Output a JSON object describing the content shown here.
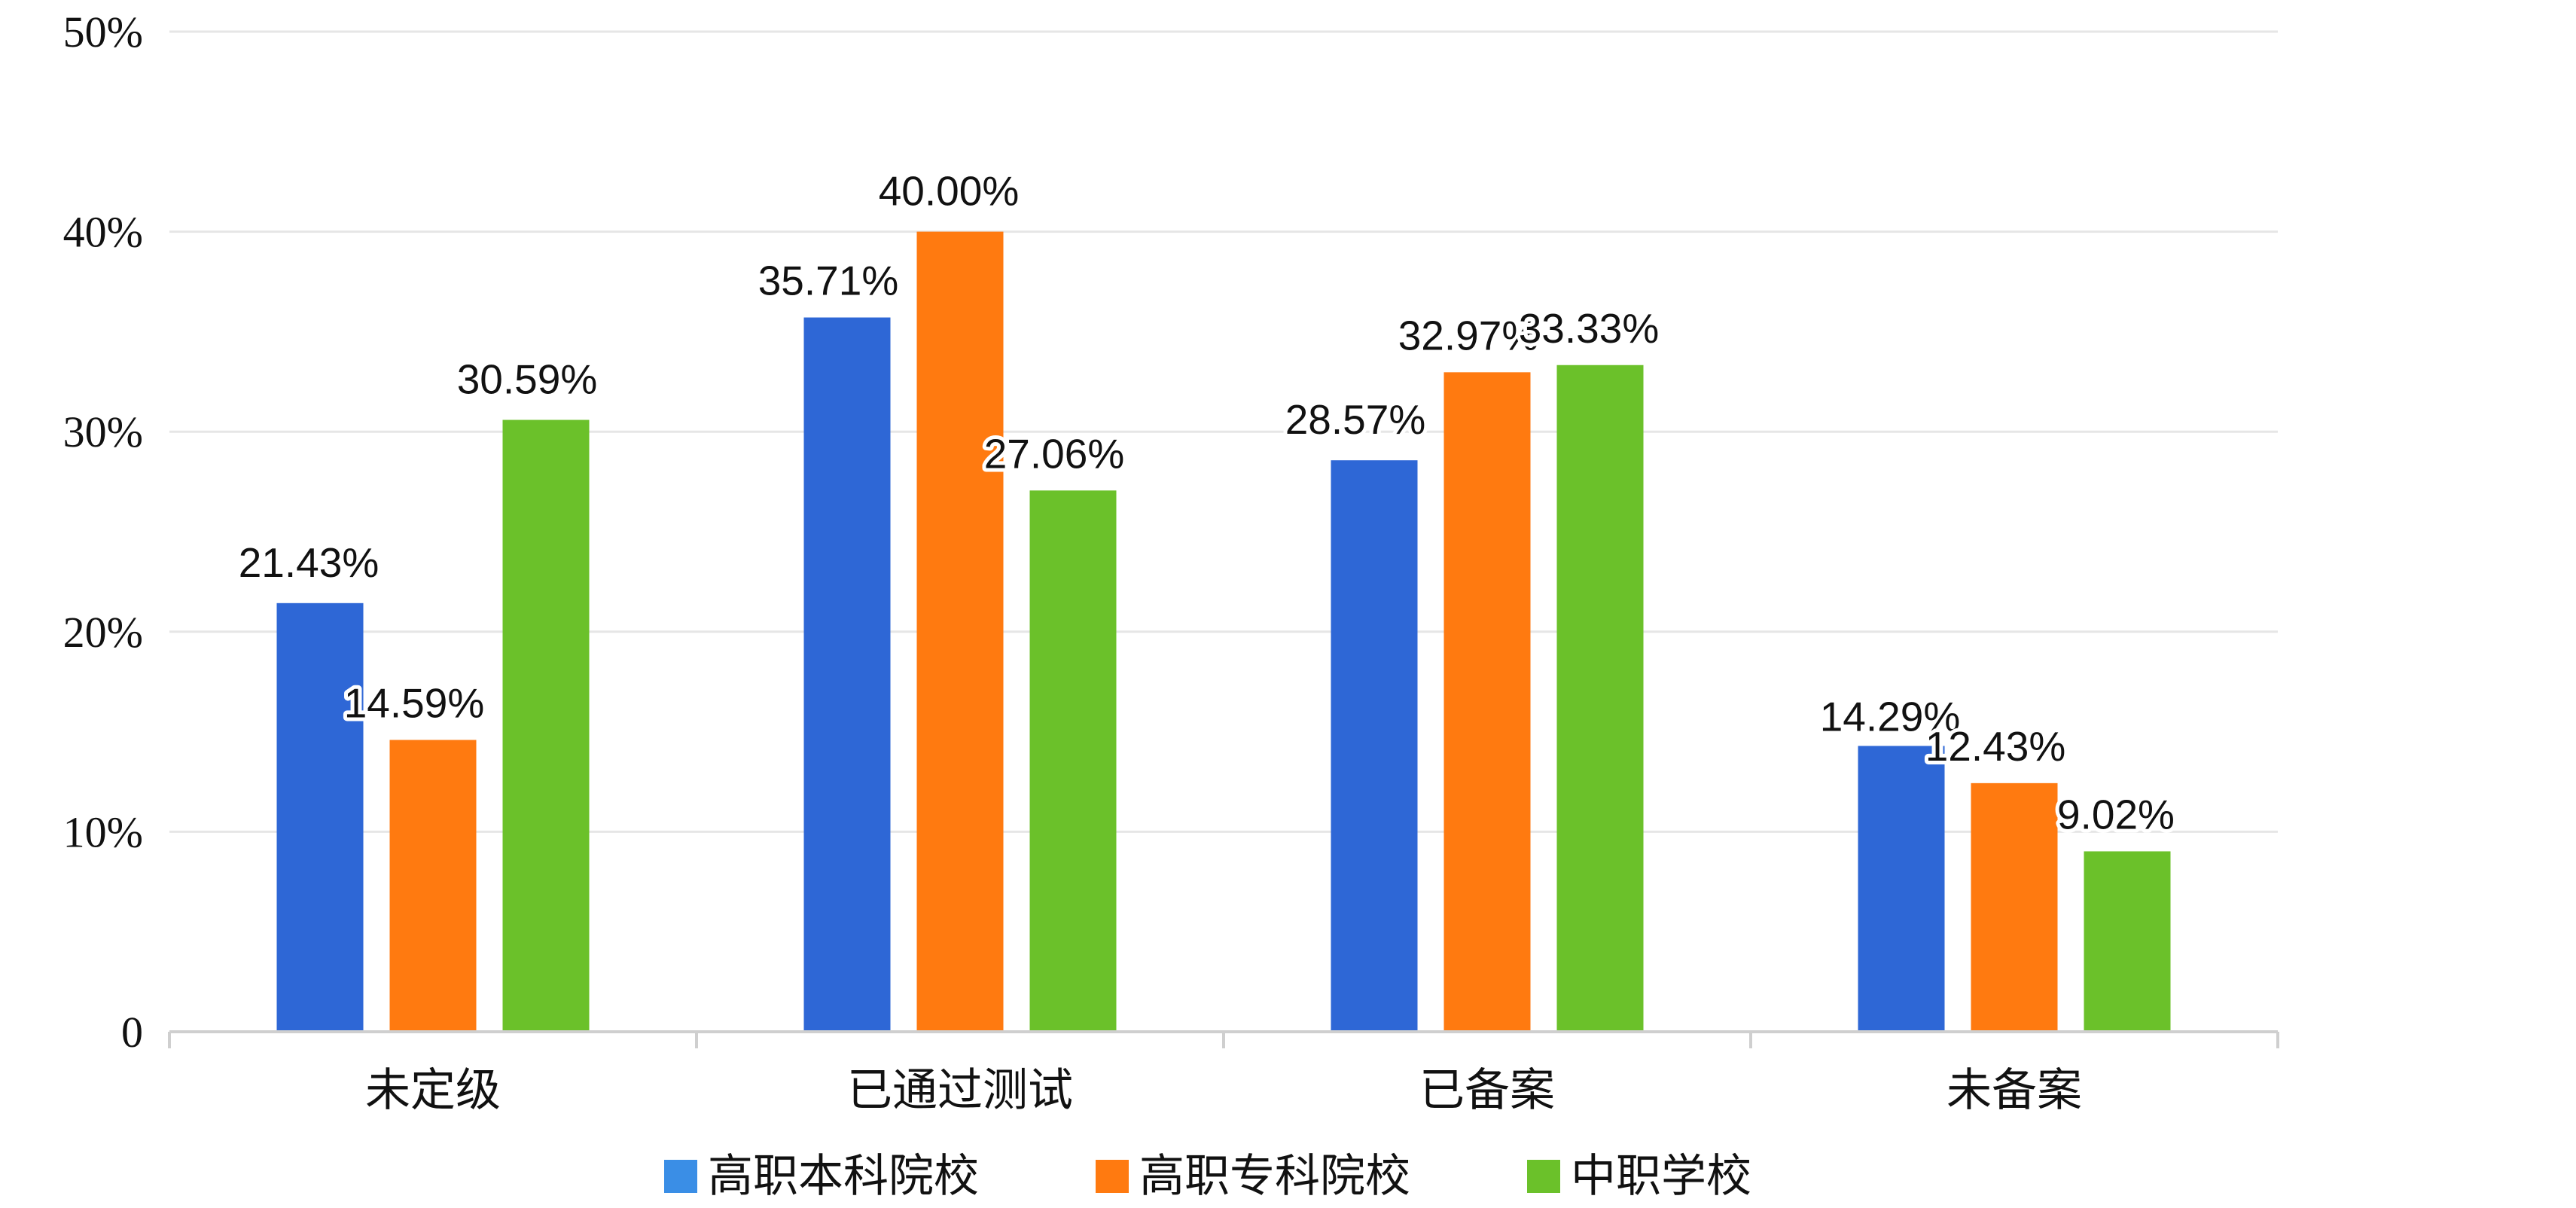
{
  "chart_data": {
    "type": "bar",
    "categories": [
      "未定级",
      "已通过测试",
      "已备案",
      "未备案"
    ],
    "series": [
      {
        "name": "高职本科院校",
        "color": "#2E67D6",
        "values": [
          21.43,
          35.71,
          28.57,
          14.29
        ],
        "labels": [
          "21.43%",
          "35.71%",
          "28.57%",
          "14.29%"
        ]
      },
      {
        "name": "高职专科院校",
        "color": "#FF7A10",
        "values": [
          14.59,
          40.0,
          32.97,
          12.43
        ],
        "labels": [
          "14.59%",
          "40.00%",
          "32.97%",
          "12.43%"
        ]
      },
      {
        "name": "中职学校",
        "color": "#6BC12A",
        "values": [
          30.59,
          27.06,
          33.33,
          9.02
        ],
        "labels": [
          "30.59%",
          "27.06%",
          "33.33%",
          "9.02%"
        ]
      }
    ],
    "ylim": [
      0,
      50
    ],
    "yticks": [
      0,
      10,
      20,
      30,
      40,
      50
    ],
    "ytick_labels": [
      "0",
      "10%",
      "20%",
      "30%",
      "40%",
      "50%"
    ],
    "grid": true,
    "legend": {
      "position": "bottom",
      "swatch_colors": [
        "#3A8EE6",
        "#FF7A10",
        "#6BC12A"
      ]
    }
  }
}
